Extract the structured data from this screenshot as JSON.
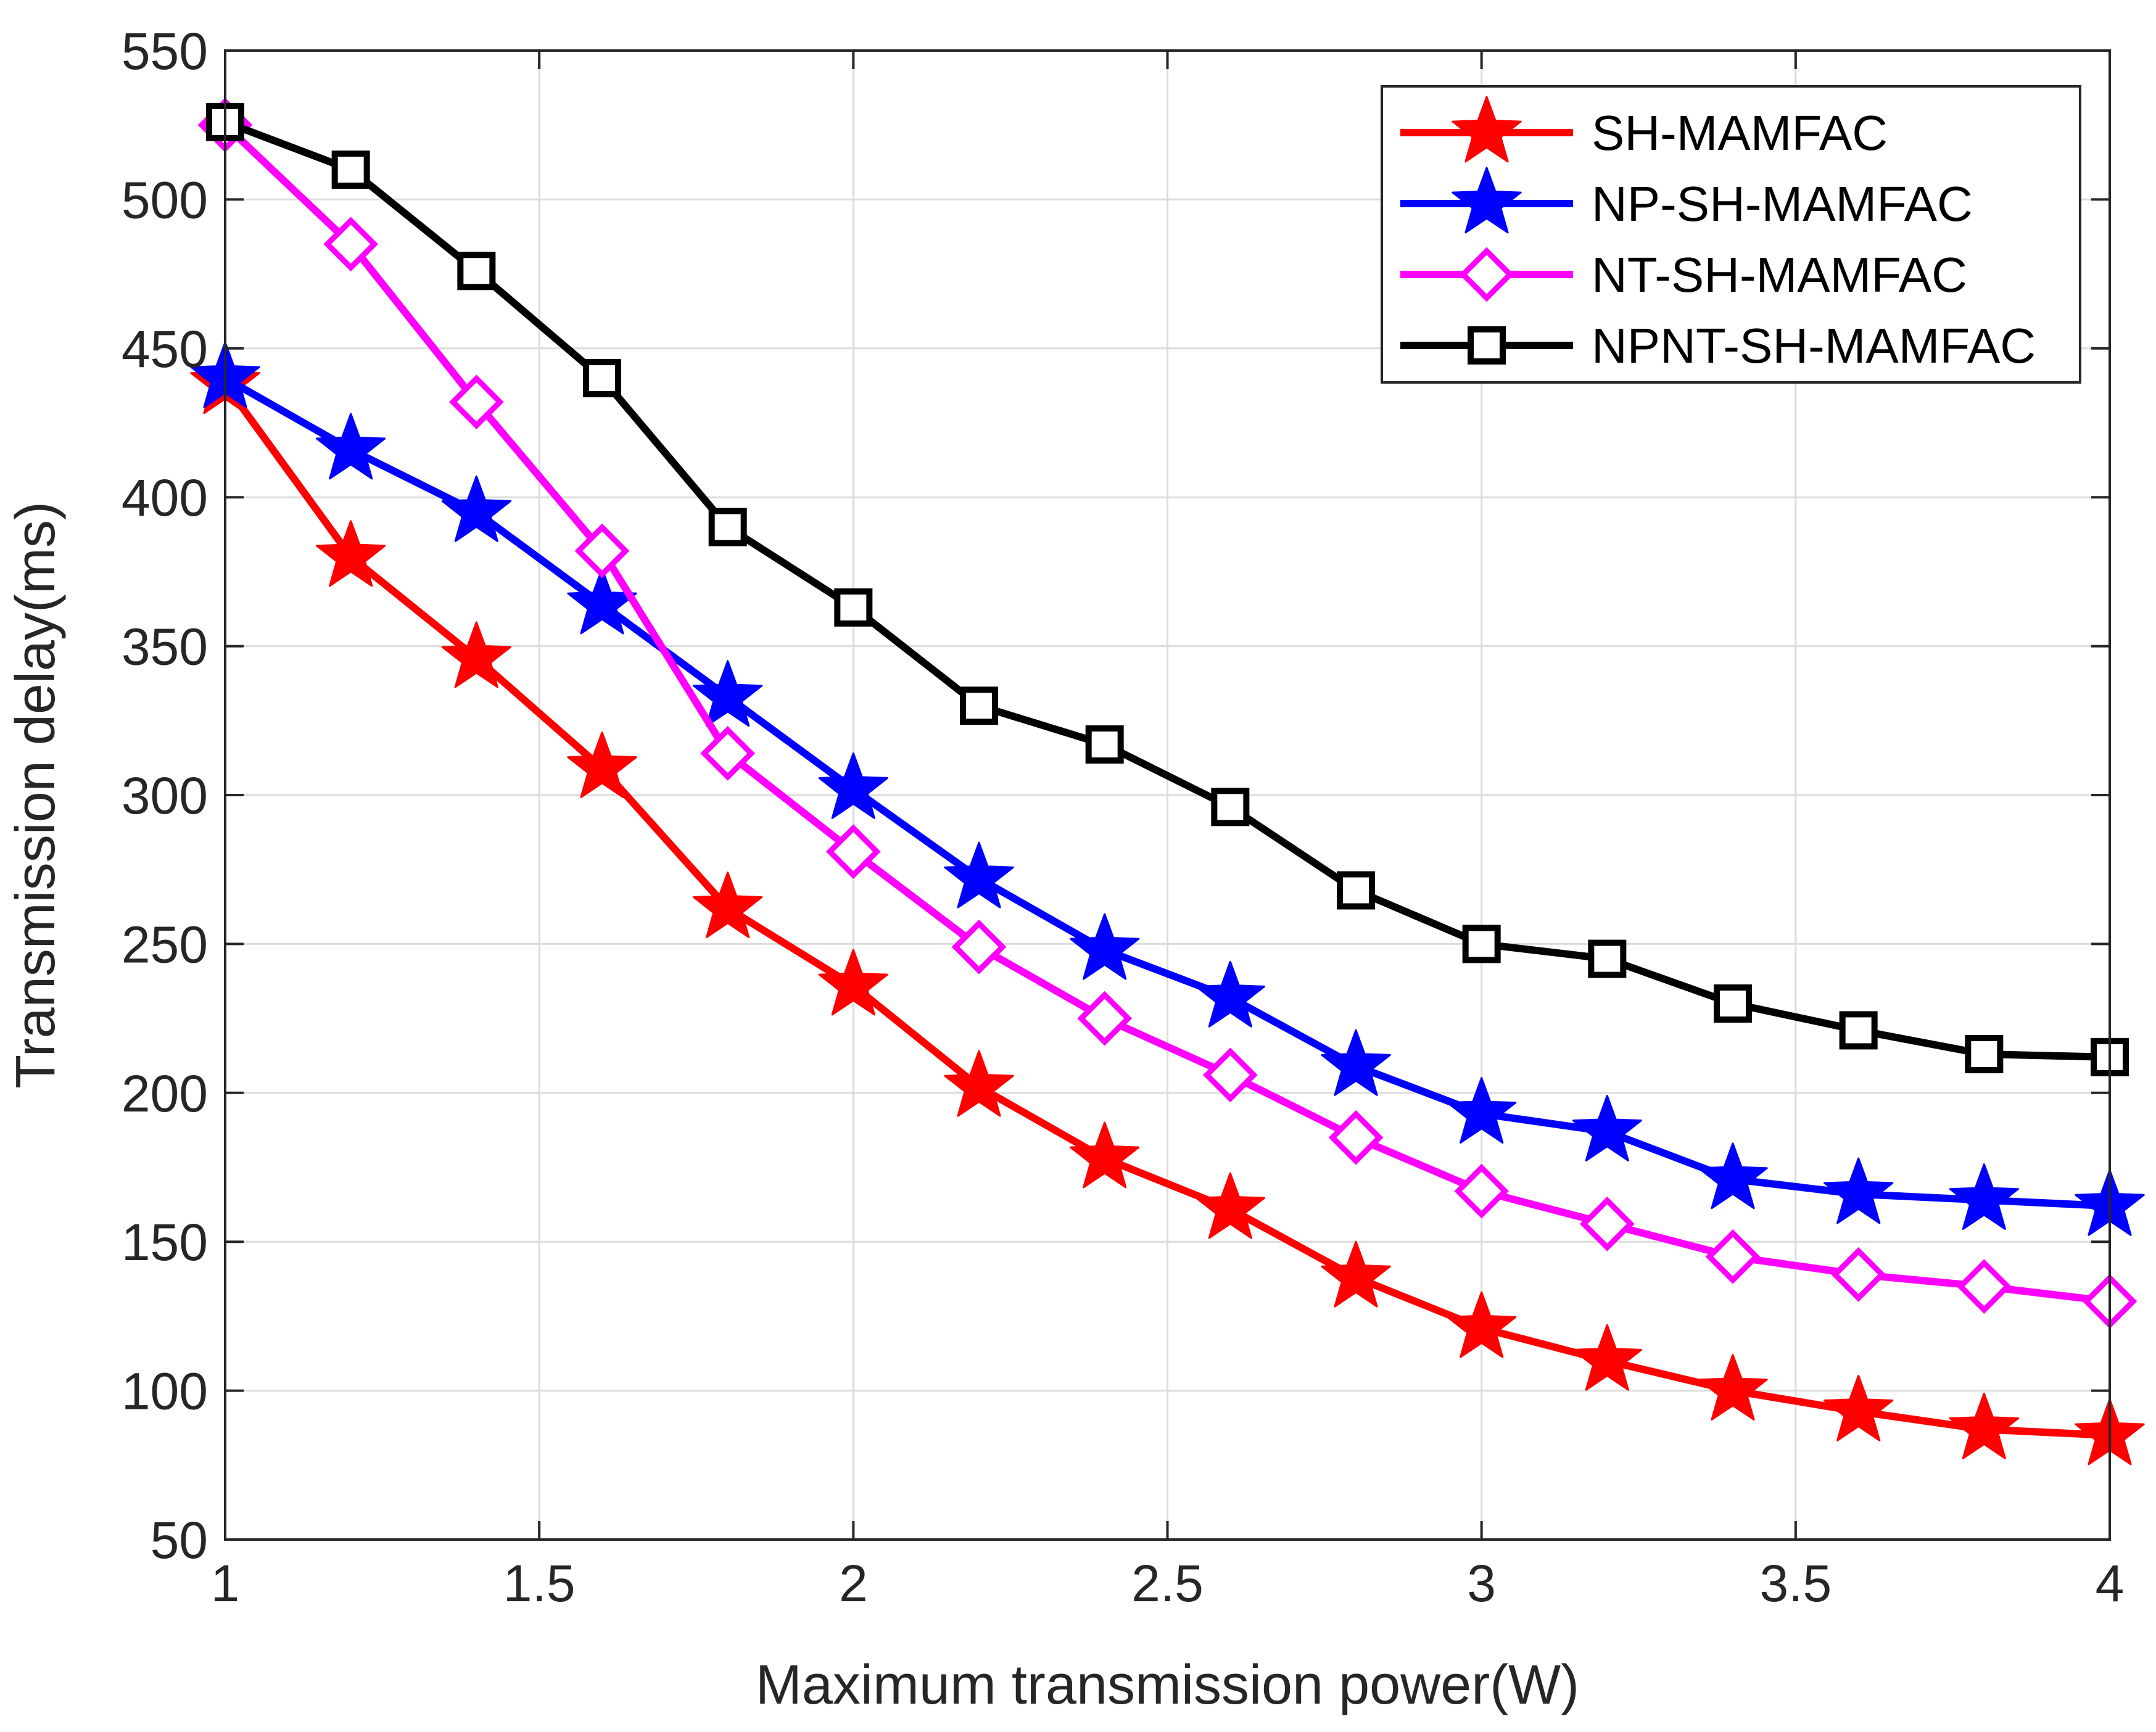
{
  "chart_data": {
    "type": "line",
    "title": "",
    "xlabel": "Maximum transmission power(W)",
    "ylabel": "Transmission delay(ms)",
    "xlim": [
      1,
      4
    ],
    "ylim": [
      50,
      550
    ],
    "xticks": [
      1,
      1.5,
      2,
      2.5,
      3,
      3.5,
      4
    ],
    "yticks": [
      50,
      100,
      150,
      200,
      250,
      300,
      350,
      400,
      450,
      500,
      550
    ],
    "xtick_labels": [
      "1",
      "1.5",
      "2",
      "2.5",
      "3",
      "3.5",
      "4"
    ],
    "ytick_labels": [
      "50",
      "100",
      "150",
      "200",
      "250",
      "300",
      "350",
      "400",
      "450",
      "500",
      "550"
    ],
    "grid": true,
    "legend_position": "top-right",
    "x": [
      1.0,
      1.2,
      1.4,
      1.6,
      1.8,
      2.0,
      2.2,
      2.4,
      2.6,
      2.8,
      3.0,
      3.2,
      3.4,
      3.6,
      3.8,
      4.0
    ],
    "series": [
      {
        "name": "SH-MAMFAC",
        "color": "#ff0000",
        "marker": "star",
        "values": [
          438,
          380,
          346,
          309,
          262,
          236,
          202,
          178,
          161,
          138,
          121,
          110,
          100,
          93,
          87,
          85
        ]
      },
      {
        "name": "NP-SH-MAMFAC",
        "color": "#0000ff",
        "marker": "star",
        "values": [
          440,
          416,
          395,
          364,
          333,
          302,
          272,
          248,
          232,
          209,
          193,
          187,
          171,
          166,
          164,
          162
        ]
      },
      {
        "name": "NT-SH-MAMFAC",
        "color": "#ff00ff",
        "marker": "diamond",
        "values": [
          525,
          485,
          432,
          382,
          314,
          281,
          249,
          225,
          206,
          185,
          167,
          156,
          145,
          139,
          135,
          130
        ]
      },
      {
        "name": "NPNT-SH-MAMFAC",
        "color": "#000000",
        "marker": "square",
        "values": [
          526,
          510,
          476,
          440,
          390,
          363,
          330,
          317,
          296,
          268,
          250,
          245,
          230,
          221,
          213,
          212
        ]
      }
    ]
  }
}
